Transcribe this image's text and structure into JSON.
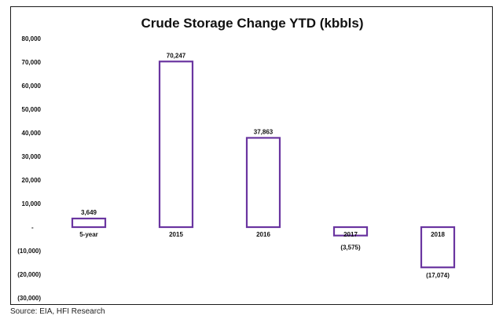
{
  "chart_data": {
    "type": "bar",
    "title": "Crude Storage Change YTD (kbbls)",
    "categories": [
      "5-year",
      "2015",
      "2016",
      "2017",
      "2018"
    ],
    "values": [
      3649,
      70247,
      37863,
      -3575,
      -17074
    ],
    "data_labels": [
      "3,649",
      "70,247",
      "37,863",
      "(3,575)",
      "(17,074)"
    ],
    "ylim": [
      -30000,
      80000
    ],
    "y_ticks": [
      80000,
      70000,
      60000,
      50000,
      40000,
      30000,
      20000,
      10000,
      0,
      -10000,
      -20000,
      -30000
    ],
    "y_tick_labels": [
      "80,000",
      "70,000",
      "60,000",
      "50,000",
      "40,000",
      "30,000",
      "20,000",
      "10,000",
      "-",
      "(10,000)",
      "(20,000)",
      "(30,000)"
    ],
    "xlabel": "",
    "ylabel": "",
    "grid": false,
    "legend": "none",
    "bar_border_color": "#6a35a0",
    "bar_fill_color": "#ffffff"
  },
  "source": "Source: EIA, HFI Research"
}
